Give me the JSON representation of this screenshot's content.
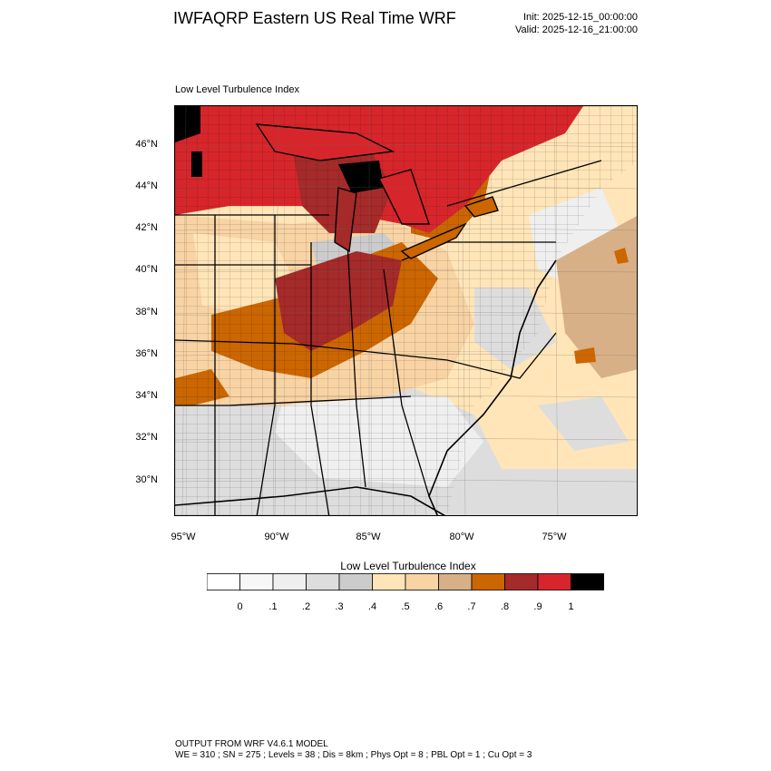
{
  "header": {
    "title": "IWFAQRP Eastern US Real Time WRF",
    "init": "Init: 2025-12-15_00:00:00",
    "valid": "Valid: 2025-12-16_21:00:00"
  },
  "map": {
    "subtitle": "Low Level Turbulence Index",
    "lat_labels": [
      "46°N",
      "44°N",
      "42°N",
      "40°N",
      "38°N",
      "36°N",
      "34°N",
      "32°N",
      "30°N"
    ],
    "lon_labels": [
      "95°W",
      "90°W",
      "85°W",
      "80°W",
      "75°W"
    ]
  },
  "colorbar": {
    "title": "Low Level Turbulence Index",
    "labels": [
      "0",
      ".1",
      ".2",
      ".3",
      ".4",
      ".5",
      ".6",
      ".7",
      ".8",
      ".9",
      "1"
    ],
    "colors": [
      "#ffffff",
      "#f7f7f7",
      "#efefef",
      "#dddddd",
      "#cccccc",
      "#ffe5b8",
      "#f8d3a4",
      "#d8b088",
      "#cc6600",
      "#a52a2a",
      "#d7262b",
      "#000000"
    ]
  },
  "footer": {
    "line1": "OUTPUT FROM WRF V4.6.1 MODEL",
    "line2": "WE = 310 ; SN = 275 ; Levels = 38 ; Dis = 8km ; Phys Opt = 8 ; PBL Opt = 1 ; Cu Opt = 3"
  }
}
